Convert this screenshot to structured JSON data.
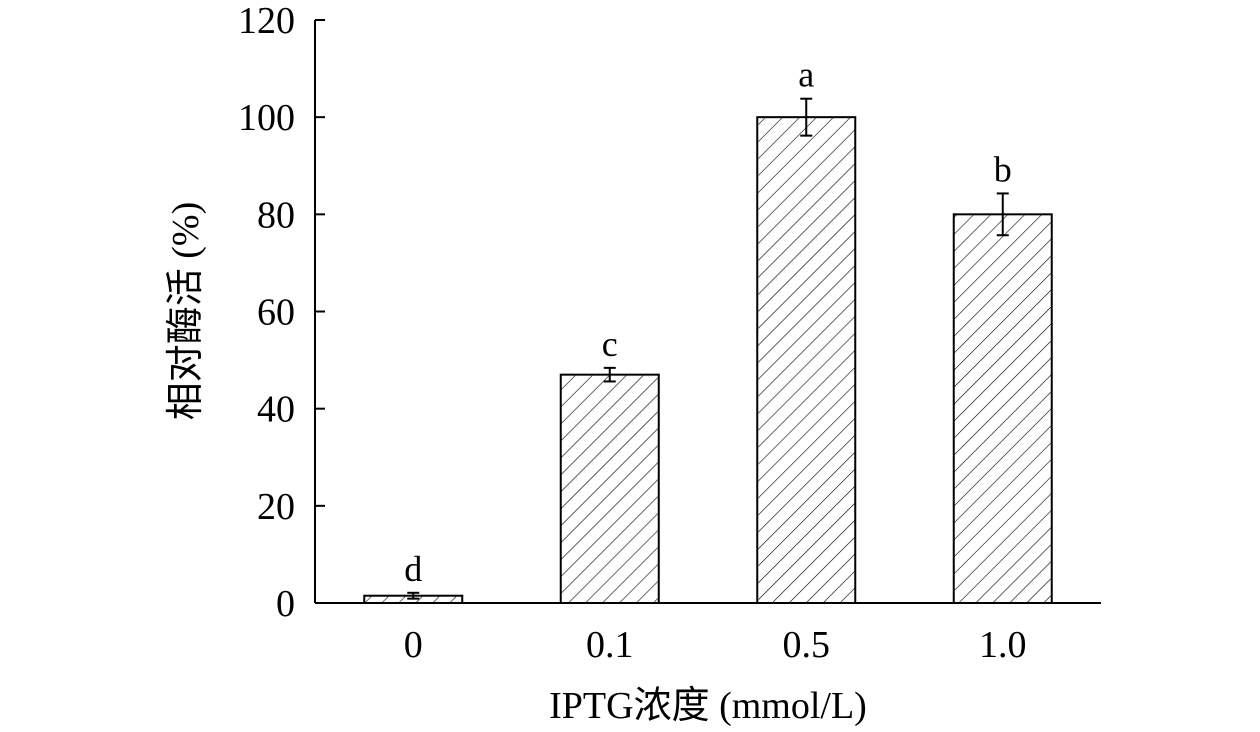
{
  "chart_data": {
    "type": "bar",
    "categories": [
      "0",
      "0.1",
      "0.5",
      "1.0"
    ],
    "values": [
      1.5,
      47,
      100,
      80
    ],
    "errors": [
      0.6,
      1.4,
      3.8,
      4.3
    ],
    "significance_letters": [
      "d",
      "c",
      "a",
      "b"
    ],
    "xlabel": "IPTG浓度 (mmol/L)",
    "ylabel": "相对酶活 (%)",
    "ylim": [
      0,
      120
    ],
    "yticks": [
      "0",
      "20",
      "40",
      "60",
      "80",
      "100",
      "120"
    ],
    "bar_fill": "hatched",
    "grid": false,
    "legend": "none"
  }
}
